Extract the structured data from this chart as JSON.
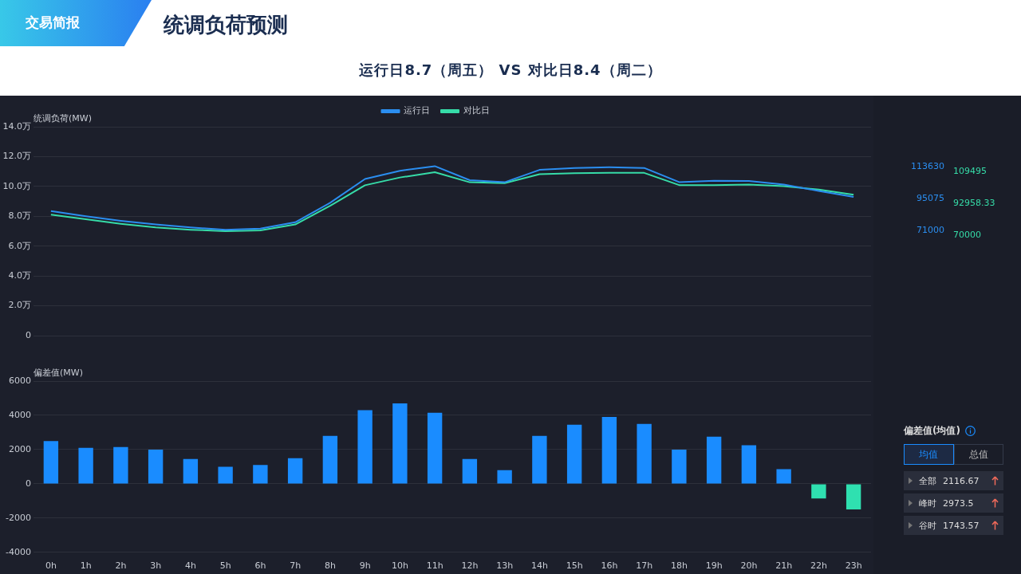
{
  "chart_data": [
    {
      "type": "line",
      "title": "统调负荷预测",
      "subtitle": "运行日8.7（周五） VS 对比日8.4（周二）",
      "ylabel": "统调负荷(MW)",
      "categories": [
        null,
        null,
        null,
        null,
        null,
        null,
        null,
        null,
        null,
        null,
        null,
        null,
        null,
        null,
        null,
        null,
        null,
        null,
        null,
        null,
        null,
        null,
        null,
        null
      ],
      "series": [
        {
          "name": "运行日",
          "color": "#2b8ef0",
          "values": [
            8.35,
            8.0,
            7.7,
            7.45,
            7.25,
            7.1,
            7.17,
            7.6,
            8.9,
            10.5,
            11.05,
            11.36,
            10.42,
            10.28,
            11.11,
            11.24,
            11.29,
            11.24,
            10.29,
            10.38,
            10.36,
            10.13,
            9.7,
            9.3
          ]
        },
        {
          "name": "对比日",
          "color": "#36dca8",
          "values": [
            8.11,
            7.8,
            7.5,
            7.25,
            7.1,
            7.0,
            7.05,
            7.45,
            8.7,
            10.08,
            10.6,
            10.95,
            10.28,
            10.22,
            10.82,
            10.89,
            10.91,
            10.91,
            10.09,
            10.09,
            10.13,
            10.02,
            9.79,
            9.45
          ]
        }
      ],
      "ylim": [
        0,
        14
      ],
      "yticks": [
        0,
        {
          "value": 2,
          "label": "2.0万"
        },
        {
          "value": 4,
          "label": "4.0万"
        },
        {
          "value": 6,
          "label": "6.0万"
        },
        {
          "value": 8,
          "label": "8.0万"
        },
        {
          "value": 10,
          "label": "10.0万"
        },
        {
          "value": 12,
          "label": "12.0万"
        },
        {
          "value": 14,
          "label": "14.0万"
        }
      ],
      "grid": "y",
      "legend": "top",
      "tick_labels": "y",
      "marker": "none",
      "line_style": "solid",
      "annotations": [
        "交易简报",
        "113630",
        "95075",
        "71000",
        "109495",
        "92958.33",
        "70000"
      ]
    },
    {
      "type": "bar",
      "ylabel": "偏差值(MW)",
      "categories": [
        "0h",
        "1h",
        "2h",
        "3h",
        "4h",
        "5h",
        "6h",
        "7h",
        "8h",
        "9h",
        "10h",
        "11h",
        "12h",
        "13h",
        "14h",
        "15h",
        "16h",
        "17h",
        "18h",
        "19h",
        "20h",
        "21h",
        "22h",
        "23h"
      ],
      "values": [
        2500,
        2100,
        2150,
        2000,
        1450,
        1000,
        1100,
        1500,
        2800,
        4300,
        4700,
        4150,
        1450,
        800,
        2800,
        3450,
        3900,
        3500,
        2000,
        2750,
        2250,
        850,
        -850,
        -1500
      ],
      "colors": [
        "#1a8cff",
        "#1a8cff",
        "#1a8cff",
        "#1a8cff",
        "#1a8cff",
        "#1a8cff",
        "#1a8cff",
        "#1a8cff",
        "#1a8cff",
        "#1a8cff",
        "#1a8cff",
        "#1a8cff",
        "#1a8cff",
        "#1a8cff",
        "#1a8cff",
        "#1a8cff",
        "#1a8cff",
        "#1a8cff",
        "#1a8cff",
        "#1a8cff",
        "#1a8cff",
        "#1a8cff",
        "#2fe0b0",
        "#2fe0b0"
      ],
      "ylim": [
        -4000,
        6000
      ],
      "yticks": [
        -4000,
        -2000,
        0,
        2000,
        4000,
        6000
      ],
      "grid": "y",
      "annotations": [
        "偏差值(均值)",
        "均值",
        "总值",
        "全部",
        "2116.67",
        "峰时",
        "2973.5",
        "谷时",
        "1743.57"
      ]
    }
  ]
}
